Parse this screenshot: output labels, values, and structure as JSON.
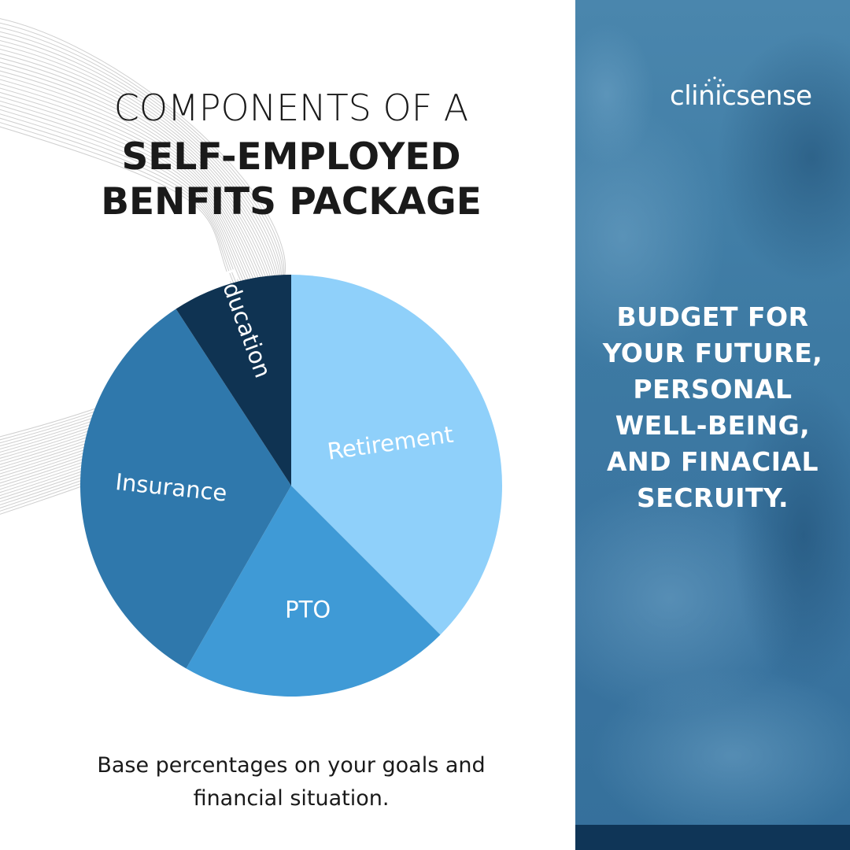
{
  "title": {
    "line1": "COMPONENTS OF A",
    "line2": "SELF-EMPLOYED",
    "line3": "BENFITS PACKAGE"
  },
  "caption": {
    "line1": "Base percentages on your goals and",
    "line2": "financial situation."
  },
  "brand": {
    "logo_text": "clinicsense"
  },
  "promo": {
    "lines": [
      "BUDGET FOR",
      "YOUR FUTURE,",
      "PERSONAL",
      "WELL-BEING,",
      "AND FINACIAL",
      "SECRUITY."
    ]
  },
  "colors": {
    "retirement": "#8fd0fa",
    "pto": "#3f9ad6",
    "insurance": "#2f78ac",
    "education": "#0f3352",
    "panel": "#3d7aa3",
    "bottom_bar": "#0f3557"
  },
  "chart_data": {
    "type": "pie",
    "categories": [
      "Retirement",
      "PTO",
      "Insurance",
      "Education"
    ],
    "values": [
      37.5,
      20.8,
      32.5,
      9.2
    ],
    "start_angle_deg": 0,
    "direction": "clockwise"
  }
}
